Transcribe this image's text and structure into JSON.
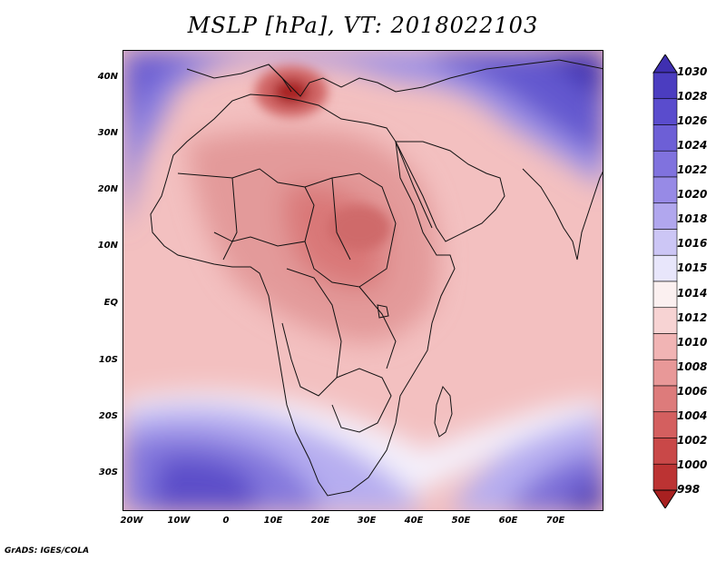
{
  "title": "MSLP [hPa], VT: 2018022103",
  "credit": "GrADS: IGES/COLA",
  "lat_labels": [
    "40N",
    "30N",
    "20N",
    "10N",
    "EQ",
    "10S",
    "20S",
    "30S"
  ],
  "lon_labels": [
    "20W",
    "10W",
    "0",
    "10E",
    "20E",
    "30E",
    "40E",
    "50E",
    "60E",
    "70E"
  ],
  "colorbar": {
    "levels": [
      "1030",
      "1028",
      "1026",
      "1024",
      "1022",
      "1020",
      "1018",
      "1016",
      "1015",
      "1014",
      "1012",
      "1010",
      "1008",
      "1006",
      "1004",
      "1002",
      "1000",
      "998"
    ],
    "colors": [
      "#3f2fb0",
      "#4b3dc0",
      "#5a4ccd",
      "#6d5fd6",
      "#8072de",
      "#978ae6",
      "#b1a7ee",
      "#ccc6f5",
      "#e8e6fb",
      "#fbf0f0",
      "#f7d3d3",
      "#f1b4b4",
      "#e89898",
      "#dd7b7b",
      "#d45f5f",
      "#c94848",
      "#bc3333",
      "#a82020"
    ]
  },
  "map": {
    "field": "mean sea level pressure",
    "units": "hPa",
    "lon_range": [
      -22,
      80
    ],
    "lat_range": [
      -37,
      45
    ]
  }
}
